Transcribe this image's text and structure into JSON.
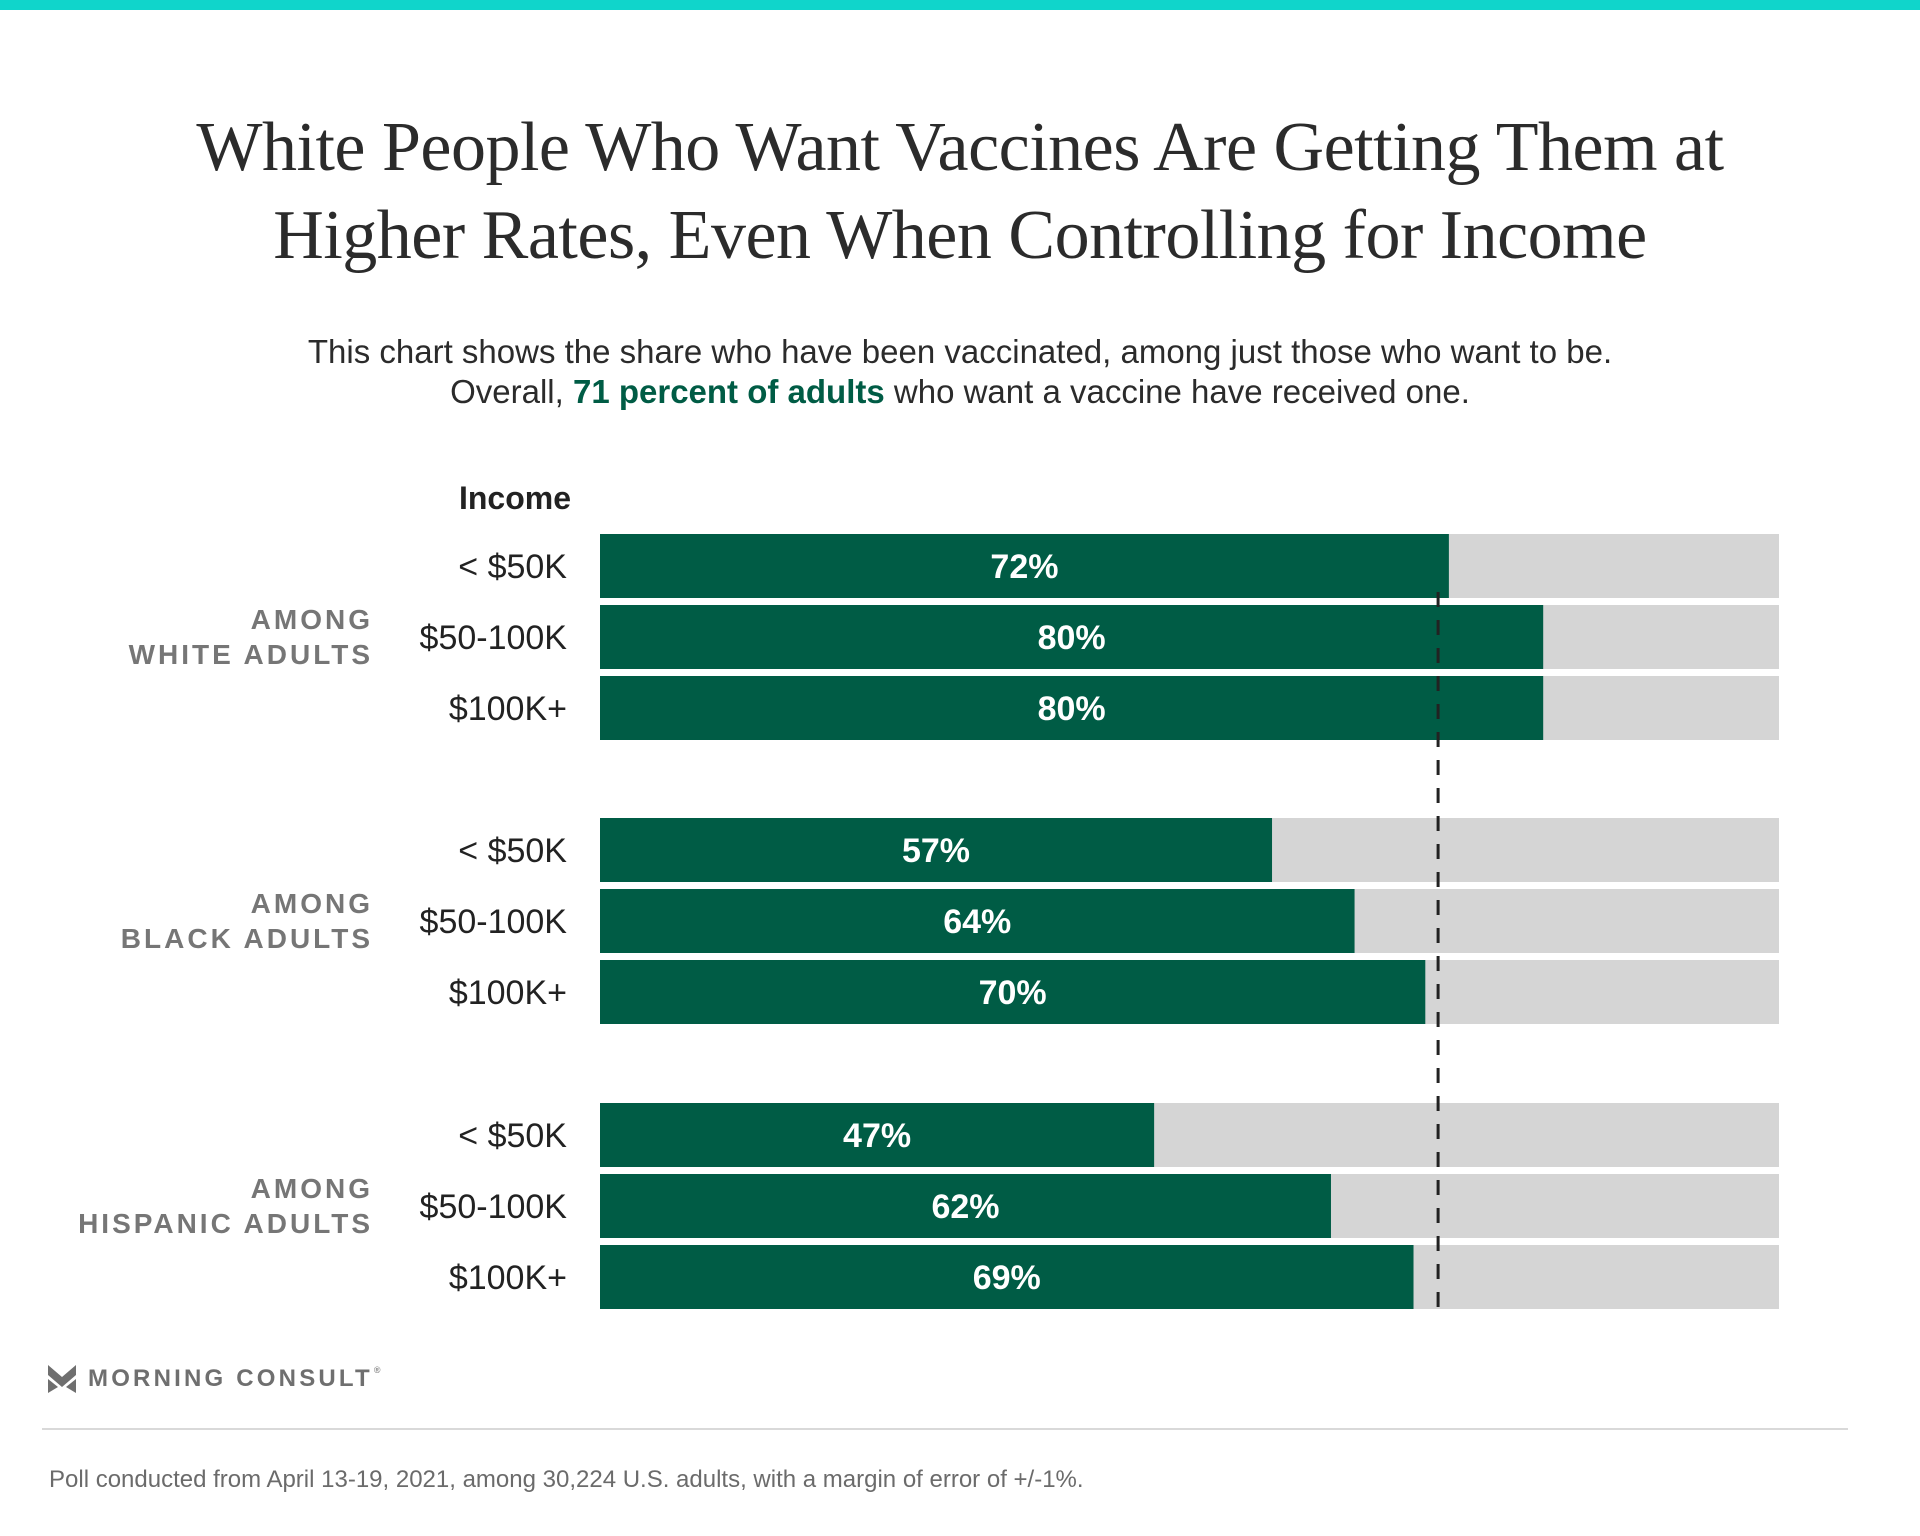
{
  "header": {
    "title_lines": [
      "White People Who Want Vaccines Are Getting Them at",
      "Higher Rates, Even When Controlling for Income"
    ],
    "subtitle_line1": "This chart shows the share who have been vaccinated, among just those who want to be.",
    "subtitle_line2_prefix": "Overall, ",
    "subtitle_line2_highlight": "71 percent of adults",
    "subtitle_line2_suffix": " who want a vaccine have received one."
  },
  "colors": {
    "top_bar": "#10d5cb",
    "bar_fill": "#005c45",
    "bar_track": "#d5d5d5",
    "highlight": "#005c45",
    "group_label": "#767676",
    "reference_line": "#222222"
  },
  "chart_data": {
    "type": "bar",
    "orientation": "horizontal",
    "title": "White People Who Want Vaccines Are Getting Them at Higher Rates, Even When Controlling for Income",
    "subtitle": "This chart shows the share who have been vaccinated, among just those who want to be. Overall, 71 percent of adults who want a vaccine have received one.",
    "category_header": "Income",
    "xlim": [
      0,
      100
    ],
    "unit": "%",
    "grid": false,
    "legend": "none",
    "reference_line": {
      "value": 71,
      "label": "Overall",
      "style": "dashed"
    },
    "groups": [
      {
        "name": "AMONG WHITE ADULTS",
        "label_lines": [
          "AMONG",
          "WHITE ADULTS"
        ],
        "categories": [
          "< $50K",
          "$50-100K",
          "$100K+"
        ],
        "values": [
          72,
          80,
          80
        ]
      },
      {
        "name": "AMONG BLACK ADULTS",
        "label_lines": [
          "AMONG",
          "BLACK ADULTS"
        ],
        "categories": [
          "< $50K",
          "$50-100K",
          "$100K+"
        ],
        "values": [
          57,
          64,
          70
        ]
      },
      {
        "name": "AMONG HISPANIC ADULTS",
        "label_lines": [
          "AMONG",
          "HISPANIC ADULTS"
        ],
        "categories": [
          "< $50K",
          "$50-100K",
          "$100K+"
        ],
        "values": [
          47,
          62,
          69
        ]
      }
    ]
  },
  "branding": {
    "logo_icon": "morning-consult-m-icon",
    "logo_text": "MORNING CONSULT",
    "logo_mark": "®"
  },
  "footer": {
    "note": "Poll conducted from April 13-19, 2021, among 30,224 U.S. adults, with a margin of error of +/-1%."
  }
}
